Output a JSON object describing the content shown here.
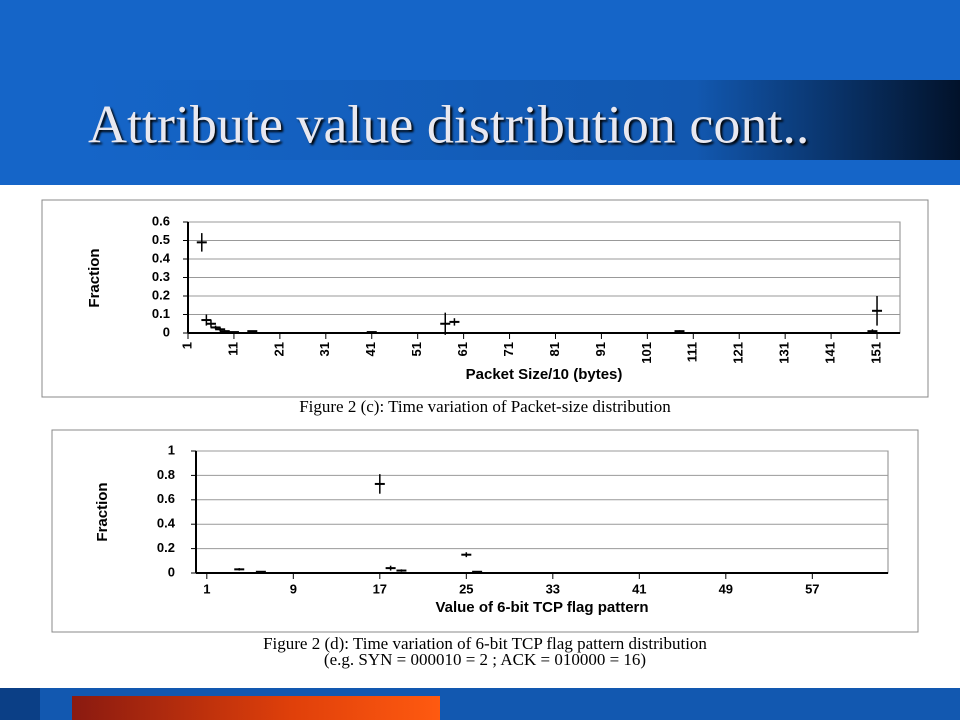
{
  "slide_title": "Attribute value distribution cont..",
  "chart_data": [
    {
      "type": "scatter",
      "x_label": "Packet Size/10  (bytes)",
      "y_label": "Fraction",
      "caption": [
        "Figure 2 (c): Time variation of Packet-size distribution"
      ],
      "x": [
        4,
        5,
        6,
        7,
        8,
        9,
        11,
        15,
        41,
        57,
        59,
        108,
        150,
        151
      ],
      "values": [
        0.49,
        0.07,
        0.05,
        0.03,
        0.02,
        0.01,
        0.005,
        0.01,
        0.005,
        0.05,
        0.06,
        0.01,
        0.01,
        0.12
      ],
      "errors": [
        0.05,
        0.03,
        0.02,
        0.01,
        0.01,
        0.005,
        0,
        0,
        0,
        0.06,
        0.02,
        0.005,
        0.01,
        0.08
      ],
      "color": "#000000",
      "xlim": [
        1,
        156
      ],
      "xticks": [
        1,
        11,
        21,
        31,
        41,
        51,
        61,
        71,
        81,
        91,
        101,
        111,
        121,
        131,
        141,
        151
      ],
      "ylim": [
        0,
        0.6
      ],
      "yticks": [
        0,
        0.1,
        0.2,
        0.3,
        0.4,
        0.5,
        0.6
      ],
      "grid": true
    },
    {
      "type": "scatter",
      "x_label": "Value of 6-bit TCP flag pattern",
      "y_label": "Fraction",
      "caption": [
        "Figure 2 (d): Time variation of 6-bit TCP flag pattern distribution",
        "(e.g. SYN = 000010 = 2 ; ACK = 010000 = 16)"
      ],
      "x": [
        4,
        6,
        17,
        18,
        19,
        25,
        26
      ],
      "values": [
        0.03,
        0.01,
        0.73,
        0.04,
        0.02,
        0.15,
        0.01
      ],
      "errors": [
        0.01,
        0.005,
        0.08,
        0.02,
        0.01,
        0.02,
        0.005
      ],
      "color": "#000000",
      "xlim": [
        0,
        64
      ],
      "xticks": [
        1,
        9,
        17,
        25,
        33,
        41,
        49,
        57
      ],
      "ylim": [
        0,
        1
      ],
      "yticks": [
        0,
        0.2,
        0.4,
        0.6,
        0.8,
        1
      ],
      "grid": true
    }
  ]
}
